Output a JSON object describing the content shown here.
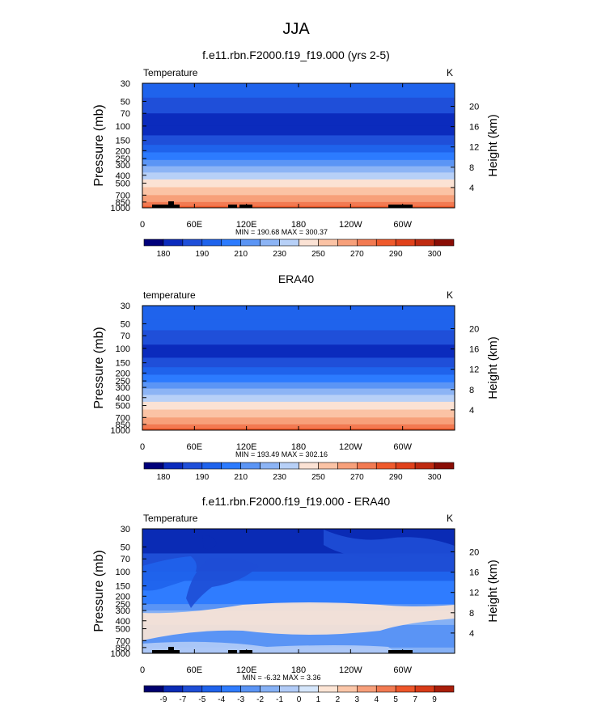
{
  "figure": {
    "title": "JJA"
  },
  "chart_data": [
    {
      "type": "heatmap",
      "title": "f.e11.rbn.F2000.f19_f19.000 (yrs 2-5)",
      "left_label": "Temperature",
      "units": "K",
      "ylabel": "Pressure (mb)",
      "ylabel_right": "Height (km)",
      "x_ticks": [
        "0",
        "60E",
        "120E",
        "180",
        "120W",
        "60W"
      ],
      "y_ticks": [
        "30",
        "50",
        "70",
        "100",
        "150",
        "200",
        "250",
        "300",
        "400",
        "500",
        "700",
        "850",
        "1000"
      ],
      "y_ticks_right": [
        "20",
        "16",
        "12",
        "8",
        "4"
      ],
      "minmax": "MIN = 190.68  MAX = 300.37",
      "colorbar_labels": [
        "180",
        "190",
        "210",
        "230",
        "250",
        "270",
        "290",
        "300"
      ],
      "field_profile": [
        {
          "pressure": 30,
          "level": 3
        },
        {
          "pressure": 45,
          "level": 2
        },
        {
          "pressure": 70,
          "level": 1
        },
        {
          "pressure": 100,
          "level": 1
        },
        {
          "pressure": 130,
          "level": 2
        },
        {
          "pressure": 170,
          "level": 3
        },
        {
          "pressure": 210,
          "level": 4
        },
        {
          "pressure": 260,
          "level": 5
        },
        {
          "pressure": 310,
          "level": 6
        },
        {
          "pressure": 370,
          "level": 7
        },
        {
          "pressure": 450,
          "level": 8
        },
        {
          "pressure": 560,
          "level": 9
        },
        {
          "pressure": 700,
          "level": 10
        },
        {
          "pressure": 850,
          "level": 11
        },
        {
          "pressure": 950,
          "level": 12
        }
      ]
    },
    {
      "type": "heatmap",
      "title": "ERA40",
      "left_label": "temperature",
      "units": "K",
      "ylabel": "Pressure (mb)",
      "ylabel_right": "Height (km)",
      "x_ticks": [
        "0",
        "60E",
        "120E",
        "180",
        "120W",
        "60W"
      ],
      "y_ticks": [
        "30",
        "50",
        "70",
        "100",
        "150",
        "200",
        "250",
        "300",
        "400",
        "500",
        "700",
        "850",
        "1000"
      ],
      "y_ticks_right": [
        "20",
        "16",
        "12",
        "8",
        "4"
      ],
      "minmax": "MIN = 193.49  MAX = 302.16",
      "colorbar_labels": [
        "180",
        "190",
        "210",
        "230",
        "250",
        "270",
        "290",
        "300"
      ],
      "field_profile": [
        {
          "pressure": 30,
          "level": 3
        },
        {
          "pressure": 45,
          "level": 3
        },
        {
          "pressure": 60,
          "level": 2
        },
        {
          "pressure": 90,
          "level": 1
        },
        {
          "pressure": 130,
          "level": 2
        },
        {
          "pressure": 170,
          "level": 3
        },
        {
          "pressure": 210,
          "level": 4
        },
        {
          "pressure": 260,
          "level": 5
        },
        {
          "pressure": 310,
          "level": 6
        },
        {
          "pressure": 370,
          "level": 7
        },
        {
          "pressure": 450,
          "level": 8
        },
        {
          "pressure": 560,
          "level": 9
        },
        {
          "pressure": 700,
          "level": 10
        },
        {
          "pressure": 850,
          "level": 11
        },
        {
          "pressure": 950,
          "level": 12
        }
      ]
    },
    {
      "type": "heatmap",
      "title": "f.e11.rbn.F2000.f19_f19.000 - ERA40",
      "left_label": "Temperature",
      "units": "K",
      "ylabel": "Pressure (mb)",
      "ylabel_right": "Height (km)",
      "x_ticks": [
        "0",
        "60E",
        "120E",
        "180",
        "120W",
        "60W"
      ],
      "y_ticks": [
        "30",
        "50",
        "70",
        "100",
        "150",
        "200",
        "250",
        "300",
        "400",
        "500",
        "700",
        "850",
        "1000"
      ],
      "y_ticks_right": [
        "20",
        "16",
        "12",
        "8",
        "4"
      ],
      "minmax": "MIN =  -6.32  MAX =   3.36",
      "colorbar_labels": [
        "-9",
        "-7",
        "-5",
        "-4",
        "-3",
        "-2",
        "-1",
        "0",
        "1",
        "2",
        "3",
        "4",
        "5",
        "7",
        "9"
      ],
      "field_profile": [
        {
          "pressure": 30,
          "level": 1
        },
        {
          "pressure": 60,
          "level": 2
        },
        {
          "pressure": 100,
          "level": 3
        },
        {
          "pressure": 130,
          "level": 4
        },
        {
          "pressure": 250,
          "level": 5
        },
        {
          "pressure": 300,
          "level": 6
        },
        {
          "pressure": 450,
          "level": 5
        },
        {
          "pressure": 850,
          "level": 6
        }
      ]
    }
  ],
  "colors": {
    "temperature_scale": [
      "#00007a",
      "#0b2bbd",
      "#1f4fd9",
      "#1f63ec",
      "#2c7bff",
      "#5b95f5",
      "#8cb4f5",
      "#b7d0f7",
      "#fbe2d4",
      "#fbc3a5",
      "#f7a07a",
      "#f27a52",
      "#ef5a2c",
      "#e0411b",
      "#bf2a10",
      "#8a0d05"
    ],
    "difference_scale": [
      "#00006e",
      "#0a2bb5",
      "#1e4ed6",
      "#1f63ec",
      "#2f7cff",
      "#5a94f5",
      "#86b1f5",
      "#b1cbf7",
      "#d5e6fb",
      "#fde5d5",
      "#fbc6a8",
      "#f79f7a",
      "#f27a52",
      "#ee562a",
      "#d83b18",
      "#a91e0a"
    ]
  }
}
